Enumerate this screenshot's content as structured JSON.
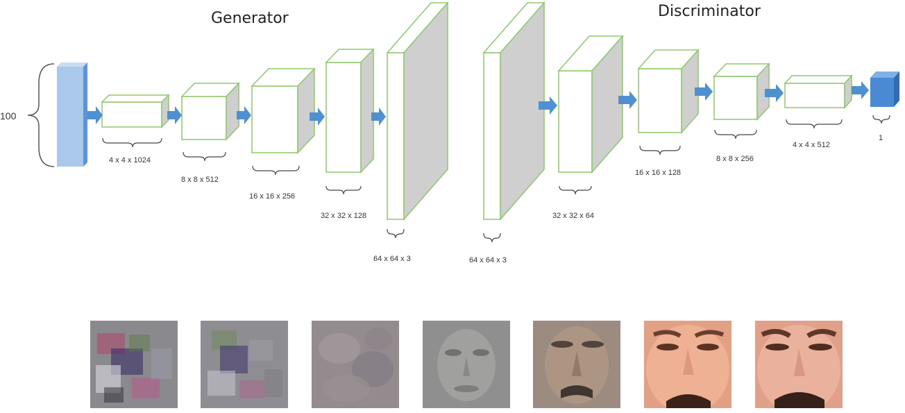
{
  "titles": {
    "generator": "Generator",
    "discriminator": "Discriminator"
  },
  "input": {
    "label": "100"
  },
  "generator_layers": [
    {
      "dims": "4 x 4 x 1024"
    },
    {
      "dims": "8 x 8 x 512"
    },
    {
      "dims": "16 x 16 x 256"
    },
    {
      "dims": "32 x 32 x 128"
    },
    {
      "dims": "64 x 64 x  3"
    }
  ],
  "discriminator_layers": [
    {
      "dims": "64 x 64 x  3"
    },
    {
      "dims": "32 x 32 x  64"
    },
    {
      "dims": "16 x 16 x 128"
    },
    {
      "dims": "8 x 8 x 256"
    },
    {
      "dims": "4 x 4 x 512"
    }
  ],
  "output": {
    "label": "1"
  },
  "colors": {
    "layer_outline": "#8dc86c",
    "layer_side": "#cfcfcf",
    "input_bar": "#a9c8ea",
    "input_bar_dark": "#5b94d4",
    "output_cube": "#4a8ad4",
    "arrow": "#4f90d0"
  },
  "samples": [
    {
      "type": "noise-colorful"
    },
    {
      "type": "noise-colorful-less"
    },
    {
      "type": "blurry-gray"
    },
    {
      "type": "faint-face-gray"
    },
    {
      "type": "noisy-face"
    },
    {
      "type": "face-clear"
    },
    {
      "type": "face-clear"
    }
  ]
}
